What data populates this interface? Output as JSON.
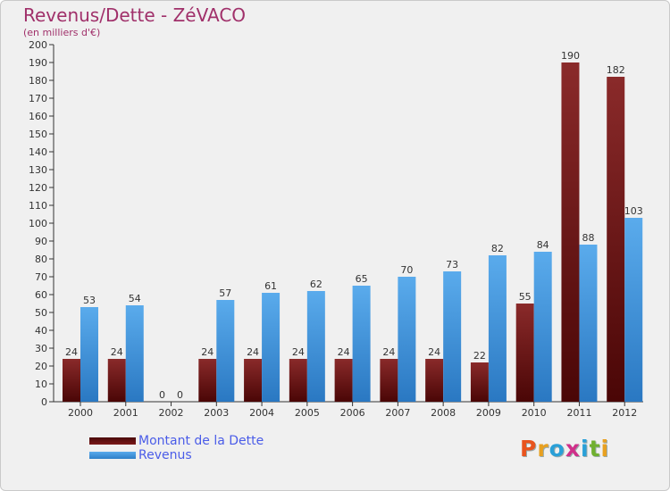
{
  "header": {
    "title": "Revenus/Dette - ZéVACO",
    "subtitle": "(en milliers d'€)"
  },
  "colors": {
    "title": "#a0306a",
    "debt": "#7a1a1a",
    "revenue": "#3d94df",
    "legend_text": "#4a5ce8"
  },
  "legend": {
    "items": [
      {
        "label": "Montant de la Dette",
        "color": "#7a1a1a"
      },
      {
        "label": "Revenus",
        "color": "#3d94df"
      }
    ],
    "placement": "bottom-left"
  },
  "logo": {
    "text": "Proxiti",
    "letter_colors": [
      "#e8541e",
      "#e8a020",
      "#2aa0d8",
      "#d0308a",
      "#2aa0d8",
      "#70b030",
      "#e8a020"
    ]
  },
  "chart_data": {
    "type": "bar",
    "categories": [
      "2000",
      "2001",
      "2002",
      "2003",
      "2004",
      "2005",
      "2006",
      "2007",
      "2008",
      "2009",
      "2010",
      "2011",
      "2012"
    ],
    "series": [
      {
        "name": "Montant de la Dette",
        "values": [
          24,
          24,
          0,
          24,
          24,
          24,
          24,
          24,
          24,
          22,
          55,
          190,
          182
        ]
      },
      {
        "name": "Revenus",
        "values": [
          53,
          54,
          0,
          57,
          61,
          62,
          65,
          70,
          73,
          82,
          84,
          88,
          103
        ]
      }
    ],
    "ylim": [
      0,
      200
    ],
    "ytick_step": 10,
    "grid": false
  }
}
